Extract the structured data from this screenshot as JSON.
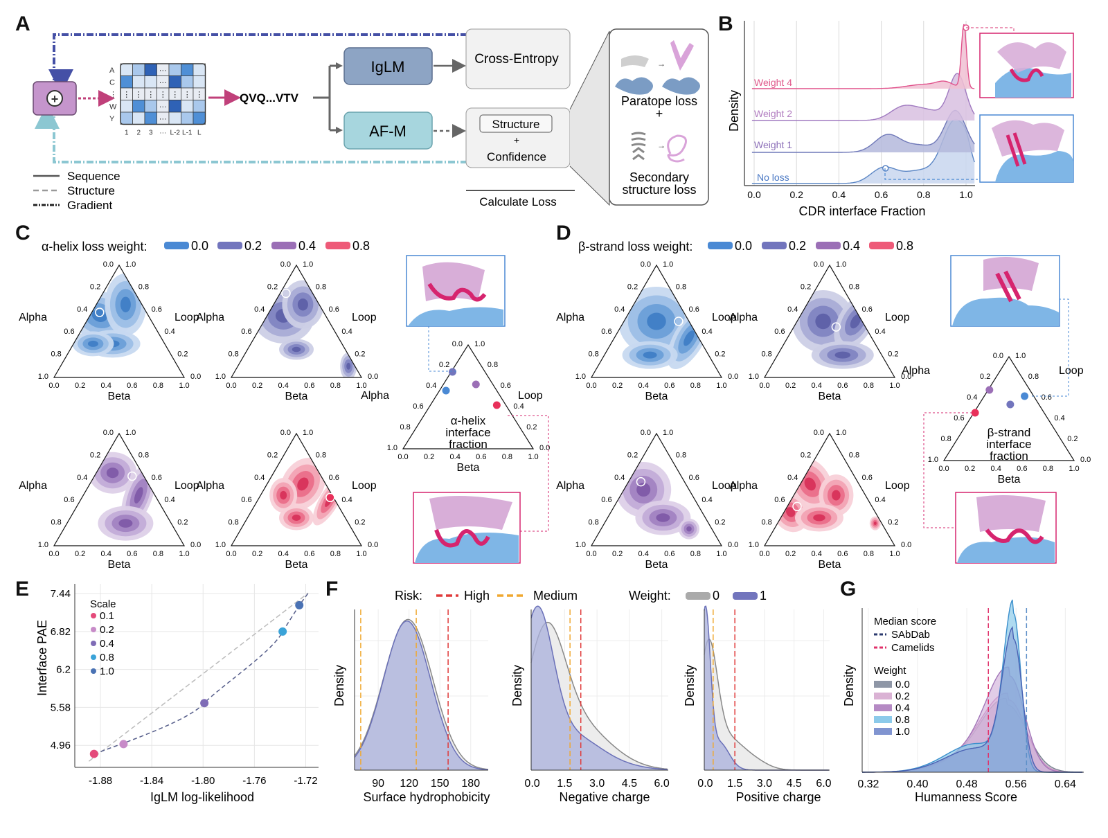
{
  "panel_labels": {
    "a": "A",
    "b": "B",
    "c": "C",
    "d": "D",
    "e": "E",
    "f": "F",
    "g": "G"
  },
  "colors": {
    "w00": "#4a89d4",
    "w02": "#7275bd",
    "w04": "#9b6fb6",
    "w08": "#ee5a78",
    "hot": "#d6246e",
    "purple_ui": "#c595cc",
    "igl": "#8da4c4",
    "afm": "#a7d6de",
    "grad_dark": "#4550a6",
    "grad_light": "#8cc7d2",
    "risk_high": "#e03a3a",
    "risk_med": "#f0a830"
  },
  "A": {
    "rows": [
      "A",
      "C",
      "⋮",
      "W",
      "Y"
    ],
    "cols": [
      "1",
      "2",
      "3",
      "···",
      "L-2",
      "L-1",
      "L"
    ],
    "seq": "QVQ...VTV",
    "igl": "IgLM",
    "afm": "AF-M",
    "ce": "Cross-Entropy",
    "struct": "Structure",
    "plus": "+",
    "conf": "Confidence",
    "paratope": "Paratope loss",
    "sec1": "Secondary",
    "sec2": "structure loss",
    "calc": "Calculate Loss",
    "leg_seq": "Sequence",
    "leg_struct": "Structure",
    "leg_grad": "Gradient"
  },
  "B": {
    "ylabel": "Density",
    "xlabel": "CDR interface Fraction",
    "ticks": [
      "0.0",
      "0.2",
      "0.4",
      "0.6",
      "0.8",
      "1.0"
    ],
    "labels": [
      "Weight 4",
      "Weight 2",
      "Weight 1",
      "No loss"
    ]
  },
  "C": {
    "title": "α-helix loss weight:",
    "legend": [
      "0.0",
      "0.2",
      "0.4",
      "0.8"
    ],
    "alpha": "Alpha",
    "loop": "Loop",
    "beta": "Beta",
    "ticks": [
      "0.0",
      "0.2",
      "0.4",
      "0.6",
      "0.8",
      "1.0"
    ],
    "summary": [
      "α-helix",
      "interface",
      "fraction"
    ]
  },
  "D": {
    "title": "β-strand loss weight:",
    "legend": [
      "0.0",
      "0.2",
      "0.4",
      "0.8"
    ],
    "summary": [
      "β-strand",
      "interface",
      "fraction"
    ]
  },
  "E": {
    "ylabel": "Interface PAE",
    "xlabel": "IgLM log-likelihood",
    "yticks": [
      "7.44",
      "6.82",
      "6.2",
      "5.58",
      "4.96"
    ],
    "xticks": [
      "-1.88",
      "-1.84",
      "-1.80",
      "-1.76",
      "-1.72"
    ],
    "legend_title": "Scale",
    "legend": [
      "0.1",
      "0.2",
      "0.4",
      "0.8",
      "1.0"
    ]
  },
  "F": {
    "risk": "Risk:",
    "high": "High",
    "medium": "Medium",
    "weight": "Weight:",
    "w0": "0",
    "w1": "1",
    "ylabel": "Density",
    "x1": "Surface hydrophobicity",
    "x1ticks": [
      "90",
      "120",
      "150",
      "180"
    ],
    "x2": "Negative charge",
    "x2ticks": [
      "0.0",
      "1.5",
      "3.0",
      "4.5",
      "6.0"
    ],
    "x3": "Positive charge",
    "x3ticks": [
      "0.0",
      "1.5",
      "3.0",
      "4.5",
      "6.0"
    ]
  },
  "G": {
    "ylabel": "Density",
    "xlabel": "Humanness Score",
    "xticks": [
      "0.32",
      "0.40",
      "0.48",
      "0.56",
      "0.64"
    ],
    "median": "Median score",
    "sabdab": "SAbDab",
    "camelids": "Camelids",
    "weight": "Weight",
    "weights": [
      "0.0",
      "0.2",
      "0.4",
      "0.8",
      "1.0"
    ]
  },
  "chart_data": [
    {
      "type": "scatter",
      "title": "",
      "xlabel": "IgLM log-likelihood",
      "ylabel": "Interface PAE",
      "xlim": [
        -1.9,
        -1.71
      ],
      "ylim": [
        4.6,
        7.6
      ],
      "series": [
        {
          "name": "Scale",
          "points": [
            {
              "scale": "0.1",
              "x": -1.885,
              "y": 4.82
            },
            {
              "scale": "0.2",
              "x": -1.862,
              "y": 4.98
            },
            {
              "scale": "0.4",
              "x": -1.799,
              "y": 5.65
            },
            {
              "scale": "0.8",
              "x": -1.738,
              "y": 6.82
            },
            {
              "scale": "1.0",
              "x": -1.725,
              "y": 7.25
            }
          ]
        }
      ]
    },
    {
      "type": "area",
      "xlabel": "Humanness Score",
      "ylabel": "Density",
      "xlim": [
        0.31,
        0.67
      ],
      "medians": {
        "SAbDab": 0.577,
        "Camelids": 0.515
      },
      "series": [
        {
          "name": "0.0",
          "peak_x": 0.545,
          "peak_density": 0.42
        },
        {
          "name": "0.2",
          "peak_x": 0.548,
          "peak_density": 0.45
        },
        {
          "name": "0.4",
          "peak_x": 0.549,
          "peak_density": 0.6
        },
        {
          "name": "0.8",
          "peak_x": 0.556,
          "peak_density": 0.99
        },
        {
          "name": "1.0",
          "peak_x": 0.556,
          "peak_density": 0.83
        }
      ]
    }
  ]
}
